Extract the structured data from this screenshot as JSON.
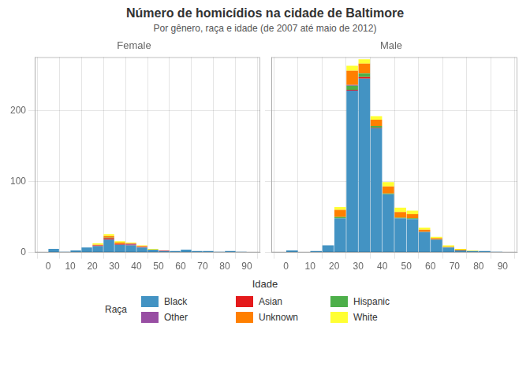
{
  "title": "Número de homicídios na cidade de Baltimore",
  "subtitle": "Por gênero, raça e idade (de 2007 até maio de 2012)",
  "xlabel": "Idade",
  "legend_title": "Raça",
  "legend": "bottom",
  "chart_data": [
    {
      "type": "histogram",
      "title": "Female",
      "stacked": true,
      "grid": true,
      "bins": [
        0,
        5,
        10,
        15,
        20,
        25,
        30,
        35,
        40,
        45,
        50,
        55,
        60,
        65,
        70,
        75,
        80,
        85,
        90
      ],
      "xlim": [
        -1,
        91
      ],
      "xticks": [
        0,
        10,
        20,
        30,
        40,
        50,
        60,
        70,
        80,
        90
      ],
      "ylim": [
        0,
        275
      ],
      "yticks": [
        0,
        100,
        200
      ],
      "series": [
        {
          "name": "Black",
          "color": "#4393c3",
          "values": [
            5,
            1,
            3,
            7,
            9,
            18,
            11,
            10,
            7,
            4,
            2,
            2,
            4,
            2,
            2,
            1,
            2,
            1
          ]
        },
        {
          "name": "Asian",
          "color": "#e41a1c",
          "values": [
            0,
            0,
            0,
            0,
            1,
            2,
            1,
            1,
            1,
            0,
            1,
            0,
            0,
            0,
            0,
            0,
            0,
            0
          ]
        },
        {
          "name": "Hispanic",
          "color": "#4daf4a",
          "values": [
            0,
            0,
            0,
            0,
            0,
            1,
            0,
            0,
            0,
            0,
            0,
            0,
            0,
            0,
            0,
            0,
            0,
            0
          ]
        },
        {
          "name": "Other",
          "color": "#984ea3",
          "values": [
            0,
            0,
            0,
            0,
            0,
            0,
            0,
            1,
            0,
            0,
            0,
            0,
            0,
            0,
            0,
            0,
            0,
            0
          ]
        },
        {
          "name": "Unknown",
          "color": "#ff7f00",
          "values": [
            0,
            0,
            0,
            0,
            1,
            2,
            2,
            1,
            1,
            0,
            0,
            0,
            0,
            0,
            0,
            0,
            0,
            0
          ]
        },
        {
          "name": "White",
          "color": "#ffff33",
          "values": [
            0,
            0,
            0,
            0,
            2,
            3,
            2,
            1,
            1,
            1,
            0,
            0,
            0,
            0,
            0,
            0,
            0,
            0
          ]
        }
      ]
    },
    {
      "type": "histogram",
      "title": "Male",
      "stacked": true,
      "grid": true,
      "tick_labels": "x",
      "bins": [
        0,
        5,
        10,
        15,
        20,
        25,
        30,
        35,
        40,
        45,
        50,
        55,
        60,
        65,
        70,
        75,
        80,
        85,
        90
      ],
      "xlim": [
        -1,
        91
      ],
      "xticks": [
        0,
        10,
        20,
        30,
        40,
        50,
        60,
        70,
        80,
        90
      ],
      "ylim": [
        0,
        275
      ],
      "yticks": [
        0,
        100,
        200
      ],
      "series": [
        {
          "name": "Black",
          "color": "#4393c3",
          "values": [
            3,
            0,
            2,
            10,
            48,
            228,
            245,
            175,
            82,
            48,
            47,
            29,
            18,
            7,
            3,
            2,
            2,
            1
          ]
        },
        {
          "name": "Asian",
          "color": "#e41a1c",
          "values": [
            0,
            0,
            0,
            0,
            0,
            1,
            2,
            1,
            0,
            0,
            0,
            0,
            0,
            0,
            0,
            0,
            0,
            0
          ]
        },
        {
          "name": "Hispanic",
          "color": "#4daf4a",
          "values": [
            0,
            0,
            0,
            0,
            2,
            6,
            5,
            2,
            1,
            1,
            1,
            0,
            0,
            0,
            0,
            0,
            0,
            0
          ]
        },
        {
          "name": "Other",
          "color": "#984ea3",
          "values": [
            0,
            0,
            0,
            0,
            0,
            1,
            0,
            0,
            0,
            0,
            0,
            0,
            0,
            0,
            0,
            0,
            0,
            0
          ]
        },
        {
          "name": "Unknown",
          "color": "#ff7f00",
          "values": [
            0,
            0,
            0,
            0,
            10,
            20,
            14,
            9,
            10,
            8,
            6,
            3,
            2,
            1,
            1,
            0,
            0,
            0
          ]
        },
        {
          "name": "White",
          "color": "#ffff33",
          "values": [
            0,
            0,
            0,
            0,
            4,
            7,
            6,
            5,
            6,
            6,
            5,
            3,
            2,
            2,
            1,
            1,
            0,
            0
          ]
        }
      ]
    }
  ]
}
